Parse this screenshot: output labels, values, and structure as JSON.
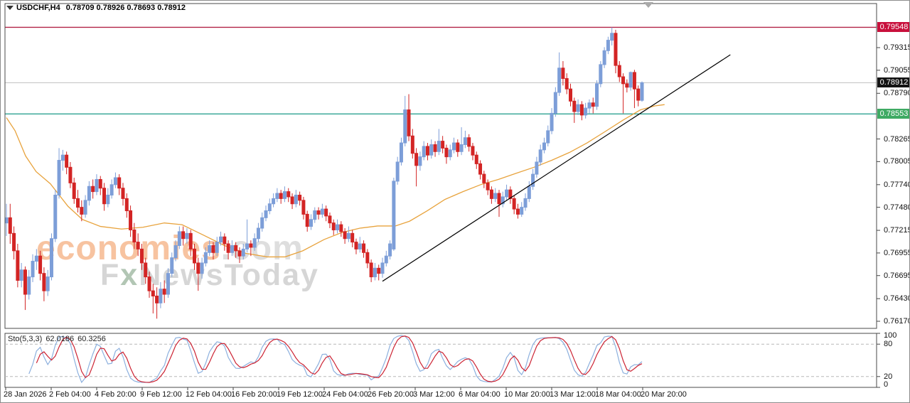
{
  "header": {
    "symbol_title": "USDCHF,H4",
    "quote_line": "0.78709 0.78926 0.78693 0.78912"
  },
  "watermark": {
    "brand": "economies",
    "brand_suffix": ".com",
    "tagline_f": "F",
    "tagline_x": "x",
    "tagline_rest": "NewsToday"
  },
  "colors": {
    "bull": "#7d9ed8",
    "bear": "#d32424",
    "ma": "#e8a33d",
    "trendline": "#000000",
    "resistance_line": "#b22346",
    "resistance_badge": "#c8103c",
    "support_line": "#2fa393",
    "support_badge": "#3eaa63",
    "current_line": "#c0c0c0",
    "current_badge": "#141414",
    "stoch_k": "#8cb0de",
    "stoch_d": "#cc2333",
    "grid_dash": "#b8b8b8",
    "frame": "#4a4a4a",
    "axis_text": "#111111"
  },
  "chart_data": {
    "type": "candlestick",
    "symbol": "USDCHF",
    "timeframe": "H4",
    "last_bar_display": {
      "open": "0.78709",
      "high": "0.78926",
      "low": "0.78693",
      "close": "0.78912"
    },
    "y_axis": {
      "ticks": [
        "0.79315",
        "0.79055",
        "0.78790",
        "0.78265",
        "0.78005",
        "0.77740",
        "0.77480",
        "0.77215",
        "0.76955",
        "0.76695",
        "0.76430",
        "0.76170"
      ],
      "range_top": 0.7975,
      "range_bottom": 0.7609
    },
    "x_axis": {
      "labels": [
        "28 Jan 2026",
        "2 Feb 04:00",
        "4 Feb 20:00",
        "9 Feb 12:00",
        "12 Feb 04:00",
        "16 Feb 20:00",
        "19 Feb 12:00",
        "24 Feb 04:00",
        "26 Feb 20:00",
        "3 Mar 12:00",
        "6 Mar 04:00",
        "10 Mar 20:00",
        "13 Mar 12:00",
        "18 Mar 04:00",
        "20 Mar 20:00"
      ],
      "label_x": [
        4,
        68,
        132,
        196,
        260,
        324,
        388,
        452,
        516,
        580,
        644,
        708,
        772,
        836,
        900
      ]
    },
    "levels": {
      "resistance": "0.79548",
      "current": "0.78912",
      "support": "0.78553"
    },
    "trendline": {
      "from_bar": 100,
      "from_price": 0.7663,
      "to_bar": 192.5,
      "to_price": 0.79233
    },
    "ma_points": [
      [
        0,
        0.7851
      ],
      [
        2.3,
        0.7836
      ],
      [
        5.1,
        0.7807
      ],
      [
        7.9,
        0.7789
      ],
      [
        11.7,
        0.7775
      ],
      [
        16.4,
        0.7749
      ],
      [
        20.2,
        0.7734
      ],
      [
        25,
        0.7726
      ],
      [
        30.6,
        0.7723
      ],
      [
        36.3,
        0.7725
      ],
      [
        42,
        0.773
      ],
      [
        46.7,
        0.7728
      ],
      [
        52.4,
        0.7716
      ],
      [
        58,
        0.7704
      ],
      [
        63.7,
        0.7695
      ],
      [
        69.4,
        0.7691
      ],
      [
        74.1,
        0.7691
      ],
      [
        78.8,
        0.7698
      ],
      [
        84.5,
        0.7711
      ],
      [
        89.2,
        0.7719
      ],
      [
        94,
        0.7724
      ],
      [
        98.7,
        0.77265
      ],
      [
        103.4,
        0.77265
      ],
      [
        107.2,
        0.7732
      ],
      [
        111.9,
        0.7744
      ],
      [
        116.6,
        0.7757
      ],
      [
        121.4,
        0.7766
      ],
      [
        126.1,
        0.7774
      ],
      [
        130.8,
        0.778
      ],
      [
        135.5,
        0.7787
      ],
      [
        140.3,
        0.7794
      ],
      [
        145,
        0.7802
      ],
      [
        149.7,
        0.7811
      ],
      [
        154.4,
        0.7822
      ],
      [
        159.2,
        0.7835
      ],
      [
        163.9,
        0.7848
      ],
      [
        168.6,
        0.786
      ],
      [
        172.4,
        0.78645
      ],
      [
        175,
        0.7866
      ]
    ],
    "candles": [
      [
        0.773,
        0.7752,
        0.7715,
        0.7736
      ],
      [
        0.7736,
        0.7752,
        0.7706,
        0.7718
      ],
      [
        0.7718,
        0.7726,
        0.7688,
        0.7698
      ],
      [
        0.7698,
        0.7706,
        0.7656,
        0.7664
      ],
      [
        0.7664,
        0.7684,
        0.7656,
        0.7676
      ],
      [
        0.7676,
        0.768,
        0.763,
        0.7648
      ],
      [
        0.7648,
        0.7676,
        0.7642,
        0.7668
      ],
      [
        0.7668,
        0.7694,
        0.7662,
        0.7686
      ],
      [
        0.7686,
        0.77,
        0.7676,
        0.7692
      ],
      [
        0.7692,
        0.7698,
        0.7664,
        0.7672
      ],
      [
        0.7672,
        0.7679,
        0.764,
        0.7652
      ],
      [
        0.7652,
        0.7676,
        0.7646,
        0.7668
      ],
      [
        0.7668,
        0.7718,
        0.7664,
        0.7712
      ],
      [
        0.7712,
        0.7768,
        0.7708,
        0.7762
      ],
      [
        0.7762,
        0.7816,
        0.7758,
        0.7802
      ],
      [
        0.7802,
        0.7814,
        0.779,
        0.7808
      ],
      [
        0.7808,
        0.7812,
        0.7786,
        0.7794
      ],
      [
        0.7794,
        0.78,
        0.777,
        0.7776
      ],
      [
        0.7776,
        0.7782,
        0.7752,
        0.7758
      ],
      [
        0.7758,
        0.7768,
        0.7742,
        0.7748
      ],
      [
        0.7748,
        0.7756,
        0.7732,
        0.774
      ],
      [
        0.774,
        0.7762,
        0.7736,
        0.7756
      ],
      [
        0.7756,
        0.7778,
        0.775,
        0.7772
      ],
      [
        0.7772,
        0.778,
        0.7758,
        0.7766
      ],
      [
        0.7766,
        0.7786,
        0.7762,
        0.778
      ],
      [
        0.778,
        0.7784,
        0.7762,
        0.777
      ],
      [
        0.777,
        0.7776,
        0.7744,
        0.7752
      ],
      [
        0.7752,
        0.777,
        0.7748,
        0.7762
      ],
      [
        0.7762,
        0.778,
        0.7758,
        0.7774
      ],
      [
        0.7774,
        0.7788,
        0.777,
        0.7782
      ],
      [
        0.7782,
        0.7786,
        0.7762,
        0.777
      ],
      [
        0.777,
        0.7776,
        0.775,
        0.7758
      ],
      [
        0.7758,
        0.7764,
        0.7736,
        0.7744
      ],
      [
        0.7744,
        0.775,
        0.7714,
        0.7722
      ],
      [
        0.7722,
        0.773,
        0.77,
        0.7708
      ],
      [
        0.7708,
        0.7718,
        0.7692,
        0.77
      ],
      [
        0.77,
        0.7706,
        0.7676,
        0.7684
      ],
      [
        0.7684,
        0.769,
        0.766,
        0.7668
      ],
      [
        0.7668,
        0.7674,
        0.7644,
        0.7652
      ],
      [
        0.7652,
        0.766,
        0.7626,
        0.7646
      ],
      [
        0.7646,
        0.7656,
        0.762,
        0.7638
      ],
      [
        0.7638,
        0.7662,
        0.7632,
        0.7654
      ],
      [
        0.7654,
        0.7664,
        0.7638,
        0.7648
      ],
      [
        0.7648,
        0.7678,
        0.7644,
        0.7672
      ],
      [
        0.7672,
        0.7696,
        0.7668,
        0.769
      ],
      [
        0.769,
        0.771,
        0.7686,
        0.7704
      ],
      [
        0.7704,
        0.7726,
        0.77,
        0.772
      ],
      [
        0.772,
        0.7726,
        0.7704,
        0.7712
      ],
      [
        0.7712,
        0.7724,
        0.7706,
        0.7718
      ],
      [
        0.7718,
        0.7722,
        0.7692,
        0.77
      ],
      [
        0.77,
        0.7706,
        0.7676,
        0.7684
      ],
      [
        0.7684,
        0.769,
        0.7652,
        0.7672
      ],
      [
        0.7672,
        0.769,
        0.7666,
        0.7684
      ],
      [
        0.7684,
        0.7702,
        0.768,
        0.7696
      ],
      [
        0.7696,
        0.771,
        0.7692,
        0.7704
      ],
      [
        0.7704,
        0.7708,
        0.7688,
        0.7696
      ],
      [
        0.7696,
        0.7714,
        0.7692,
        0.7708
      ],
      [
        0.7708,
        0.772,
        0.7704,
        0.7714
      ],
      [
        0.7714,
        0.7718,
        0.7698,
        0.7706
      ],
      [
        0.7706,
        0.771,
        0.7688,
        0.7696
      ],
      [
        0.7696,
        0.771,
        0.7692,
        0.7704
      ],
      [
        0.7704,
        0.7708,
        0.769,
        0.7698
      ],
      [
        0.7698,
        0.7702,
        0.7684,
        0.7692
      ],
      [
        0.7692,
        0.7706,
        0.7688,
        0.77
      ],
      [
        0.77,
        0.7734,
        0.7696,
        0.7706
      ],
      [
        0.7706,
        0.771,
        0.7692,
        0.7702
      ],
      [
        0.7702,
        0.7718,
        0.7698,
        0.7712
      ],
      [
        0.7712,
        0.773,
        0.7708,
        0.7724
      ],
      [
        0.7724,
        0.7742,
        0.772,
        0.7736
      ],
      [
        0.7736,
        0.775,
        0.7732,
        0.7744
      ],
      [
        0.7744,
        0.7758,
        0.774,
        0.7752
      ],
      [
        0.7752,
        0.7764,
        0.7748,
        0.7758
      ],
      [
        0.7758,
        0.777,
        0.7754,
        0.7764
      ],
      [
        0.7764,
        0.7768,
        0.7752,
        0.7758
      ],
      [
        0.7758,
        0.7772,
        0.7754,
        0.7766
      ],
      [
        0.7766,
        0.777,
        0.7754,
        0.776
      ],
      [
        0.776,
        0.7764,
        0.7746,
        0.7752
      ],
      [
        0.7752,
        0.7768,
        0.7748,
        0.7762
      ],
      [
        0.7762,
        0.7766,
        0.775,
        0.7756
      ],
      [
        0.7756,
        0.776,
        0.7734,
        0.774
      ],
      [
        0.774,
        0.7744,
        0.772,
        0.7726
      ],
      [
        0.7726,
        0.774,
        0.7722,
        0.7734
      ],
      [
        0.7734,
        0.7748,
        0.773,
        0.7744
      ],
      [
        0.7744,
        0.7748,
        0.7734,
        0.774
      ],
      [
        0.774,
        0.7752,
        0.7736,
        0.7746
      ],
      [
        0.7746,
        0.775,
        0.7732,
        0.7738
      ],
      [
        0.7738,
        0.7742,
        0.7724,
        0.773
      ],
      [
        0.773,
        0.7734,
        0.7716,
        0.7722
      ],
      [
        0.7722,
        0.7734,
        0.7718,
        0.7728
      ],
      [
        0.7728,
        0.7732,
        0.7714,
        0.772
      ],
      [
        0.772,
        0.7724,
        0.7706,
        0.7712
      ],
      [
        0.7712,
        0.7726,
        0.7708,
        0.7718
      ],
      [
        0.7718,
        0.7722,
        0.7702,
        0.7708
      ],
      [
        0.7708,
        0.7712,
        0.7694,
        0.77
      ],
      [
        0.77,
        0.7714,
        0.7696,
        0.7706
      ],
      [
        0.7706,
        0.771,
        0.769,
        0.7696
      ],
      [
        0.7696,
        0.77,
        0.7678,
        0.7684
      ],
      [
        0.7684,
        0.7688,
        0.7662,
        0.7668
      ],
      [
        0.7668,
        0.7684,
        0.7664,
        0.7678
      ],
      [
        0.7678,
        0.7682,
        0.7664,
        0.7672
      ],
      [
        0.7672,
        0.769,
        0.7667,
        0.7684
      ],
      [
        0.7684,
        0.7698,
        0.768,
        0.7692
      ],
      [
        0.7692,
        0.771,
        0.7688,
        0.7706
      ],
      [
        0.77,
        0.7782,
        0.7698,
        0.7778
      ],
      [
        0.7778,
        0.7806,
        0.7774,
        0.78
      ],
      [
        0.78,
        0.7828,
        0.7796,
        0.7822
      ],
      [
        0.7822,
        0.7876,
        0.7818,
        0.786
      ],
      [
        0.786,
        0.7878,
        0.7824,
        0.783
      ],
      [
        0.783,
        0.7838,
        0.7804,
        0.781
      ],
      [
        0.781,
        0.7816,
        0.7772,
        0.7796
      ],
      [
        0.7796,
        0.7812,
        0.779,
        0.7806
      ],
      [
        0.7806,
        0.7824,
        0.7802,
        0.7818
      ],
      [
        0.7818,
        0.7822,
        0.7802,
        0.7808
      ],
      [
        0.7808,
        0.7826,
        0.7804,
        0.782
      ],
      [
        0.782,
        0.7824,
        0.7806,
        0.7812
      ],
      [
        0.7812,
        0.7838,
        0.7808,
        0.7824
      ],
      [
        0.7824,
        0.783,
        0.781,
        0.7816
      ],
      [
        0.7816,
        0.782,
        0.7798,
        0.7806
      ],
      [
        0.7806,
        0.782,
        0.7802,
        0.7814
      ],
      [
        0.7814,
        0.7828,
        0.781,
        0.7822
      ],
      [
        0.7822,
        0.7826,
        0.7806,
        0.7812
      ],
      [
        0.7812,
        0.784,
        0.7808,
        0.782
      ],
      [
        0.782,
        0.7836,
        0.7816,
        0.7828
      ],
      [
        0.7828,
        0.7832,
        0.7812,
        0.7818
      ],
      [
        0.7818,
        0.7822,
        0.7802,
        0.7808
      ],
      [
        0.7808,
        0.7812,
        0.7792,
        0.7798
      ],
      [
        0.7798,
        0.7802,
        0.778,
        0.7786
      ],
      [
        0.7786,
        0.779,
        0.777,
        0.7776
      ],
      [
        0.7776,
        0.778,
        0.7762,
        0.7768
      ],
      [
        0.7768,
        0.7772,
        0.7752,
        0.7758
      ],
      [
        0.7758,
        0.777,
        0.7754,
        0.7764
      ],
      [
        0.7764,
        0.7768,
        0.7737,
        0.7752
      ],
      [
        0.7752,
        0.7766,
        0.7748,
        0.776
      ],
      [
        0.776,
        0.7774,
        0.7756,
        0.7768
      ],
      [
        0.7768,
        0.7772,
        0.7752,
        0.7758
      ],
      [
        0.7758,
        0.7762,
        0.774,
        0.7746
      ],
      [
        0.7746,
        0.7752,
        0.7735,
        0.774
      ],
      [
        0.774,
        0.7754,
        0.7737,
        0.7748
      ],
      [
        0.7748,
        0.7764,
        0.7744,
        0.7758
      ],
      [
        0.7758,
        0.7778,
        0.7754,
        0.7772
      ],
      [
        0.7772,
        0.7792,
        0.7768,
        0.7786
      ],
      [
        0.7786,
        0.7806,
        0.7782,
        0.78
      ],
      [
        0.78,
        0.782,
        0.7796,
        0.7814
      ],
      [
        0.7814,
        0.7828,
        0.781,
        0.7822
      ],
      [
        0.7822,
        0.7842,
        0.7818,
        0.7836
      ],
      [
        0.7836,
        0.7862,
        0.7832,
        0.7856
      ],
      [
        0.7856,
        0.7886,
        0.7852,
        0.788
      ],
      [
        0.788,
        0.7926,
        0.7876,
        0.7908
      ],
      [
        0.7908,
        0.7916,
        0.7888,
        0.7896
      ],
      [
        0.7896,
        0.7902,
        0.7878,
        0.7884
      ],
      [
        0.7884,
        0.789,
        0.7864,
        0.787
      ],
      [
        0.787,
        0.7874,
        0.7845,
        0.7858
      ],
      [
        0.7858,
        0.7872,
        0.7854,
        0.7866
      ],
      [
        0.7866,
        0.787,
        0.7848,
        0.7854
      ],
      [
        0.7854,
        0.7868,
        0.785,
        0.7862
      ],
      [
        0.7862,
        0.7872,
        0.7856,
        0.7868
      ],
      [
        0.7868,
        0.7874,
        0.7856,
        0.7864
      ],
      [
        0.7864,
        0.7894,
        0.786,
        0.789
      ],
      [
        0.789,
        0.7916,
        0.7886,
        0.7912
      ],
      [
        0.7912,
        0.7932,
        0.7908,
        0.7928
      ],
      [
        0.7928,
        0.7944,
        0.7924,
        0.794
      ],
      [
        0.794,
        0.79548,
        0.7934,
        0.7948
      ],
      [
        0.7948,
        0.7952,
        0.7902,
        0.7911
      ],
      [
        0.7911,
        0.7916,
        0.7892,
        0.7898
      ],
      [
        0.7898,
        0.7902,
        0.7856,
        0.789
      ],
      [
        0.789,
        0.7895,
        0.788,
        0.7886
      ],
      [
        0.7886,
        0.7904,
        0.7882,
        0.7903
      ],
      [
        0.7903,
        0.7906,
        0.7862,
        0.7884
      ],
      [
        0.7884,
        0.7888,
        0.7864,
        0.7871
      ],
      [
        0.78709,
        0.78926,
        0.78693,
        0.78912
      ]
    ],
    "stochastic": {
      "name": "Sto(5,3,3)",
      "k_period": 5,
      "d_period": 3,
      "slowing": 3,
      "k_value": "62.0186",
      "d_value": "60.3256",
      "levels": [
        100,
        80,
        20,
        0
      ],
      "dashed_levels": [
        80,
        20
      ]
    }
  }
}
